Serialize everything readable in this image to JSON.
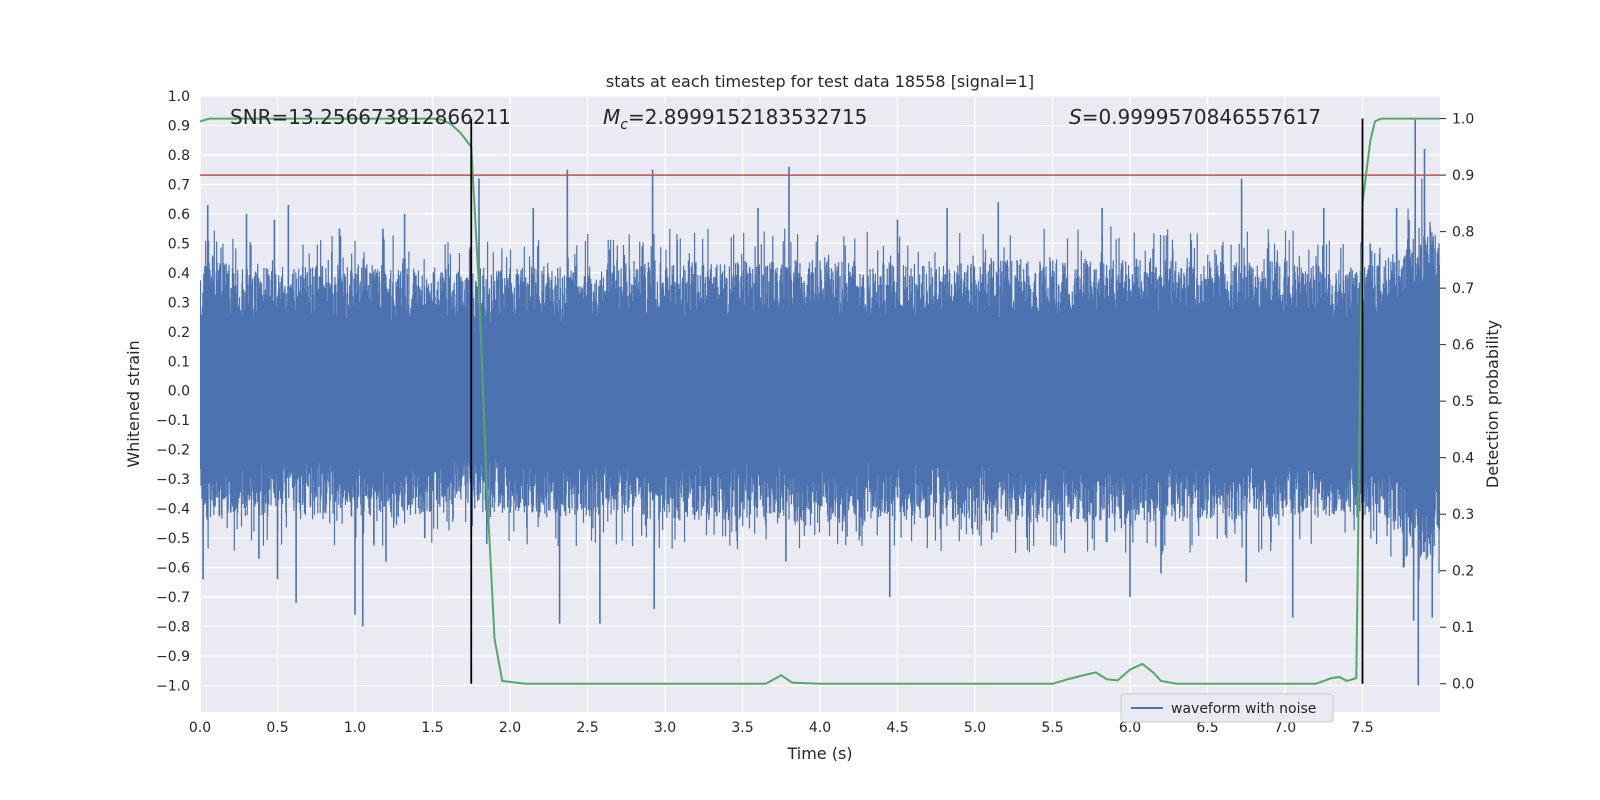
{
  "chart_data": {
    "type": "line",
    "title": "stats at each timestep for test data 18558 [signal=1]",
    "xlabel": "Time (s)",
    "ylabel": "Whitened strain",
    "y2label": "Detection probability",
    "xlim": [
      0.0,
      8.0
    ],
    "ylim": [
      -1.09,
      1.0
    ],
    "y2lim": [
      -0.05,
      1.04
    ],
    "xticks": [
      "0.0",
      "0.5",
      "1.0",
      "1.5",
      "2.0",
      "2.5",
      "3.0",
      "3.5",
      "4.0",
      "4.5",
      "5.0",
      "5.5",
      "6.0",
      "6.5",
      "7.0",
      "7.5"
    ],
    "xtick_values": [
      0.0,
      0.5,
      1.0,
      1.5,
      2.0,
      2.5,
      3.0,
      3.5,
      4.0,
      4.5,
      5.0,
      5.5,
      6.0,
      6.5,
      7.0,
      7.5
    ],
    "yticks": [
      "1.0",
      "0.9",
      "0.8",
      "0.7",
      "0.6",
      "0.5",
      "0.4",
      "0.3",
      "0.2",
      "0.1",
      "0.0",
      "−0.1",
      "−0.2",
      "−0.3",
      "−0.4",
      "−0.5",
      "−0.6",
      "−0.7",
      "−0.8",
      "−0.9",
      "−1.0"
    ],
    "ytick_values": [
      1.0,
      0.9,
      0.8,
      0.7,
      0.6,
      0.5,
      0.4,
      0.3,
      0.2,
      0.1,
      0.0,
      -0.1,
      -0.2,
      -0.3,
      -0.4,
      -0.5,
      -0.6,
      -0.7,
      -0.8,
      -0.9,
      -1.0
    ],
    "y2ticks": [
      "1.0",
      "0.9",
      "0.8",
      "0.7",
      "0.6",
      "0.5",
      "0.4",
      "0.3",
      "0.2",
      "0.1",
      "0.0"
    ],
    "y2tick_values": [
      1.0,
      0.9,
      0.8,
      0.7,
      0.6,
      0.5,
      0.4,
      0.3,
      0.2,
      0.1,
      0.0
    ],
    "grid": true,
    "legend": {
      "placement": "lower-right",
      "entries": [
        "waveform with noise"
      ]
    },
    "annotations": {
      "snr": "SNR=13.256673812866211",
      "mc_symbol": "M",
      "mc_sub": "c",
      "mc_value": "=2.8999152183532715",
      "s_symbol": "S",
      "s_value": "=0.9999570846557617"
    },
    "threshold": {
      "value": 0.9,
      "axis": "right",
      "color": "#c44e52"
    },
    "vlines": [
      1.75,
      7.5
    ],
    "series": [
      {
        "name": "waveform with noise",
        "axis": "left",
        "color": "#4c72b0",
        "envelope": {
          "x": [
            0.0,
            0.5,
            1.0,
            1.5,
            1.75,
            2.0,
            2.5,
            3.0,
            3.5,
            4.0,
            4.5,
            5.0,
            5.5,
            6.0,
            6.5,
            7.0,
            7.5,
            7.8,
            7.9,
            8.0
          ],
          "typical": [
            0.45,
            0.42,
            0.43,
            0.42,
            0.4,
            0.42,
            0.43,
            0.44,
            0.44,
            0.45,
            0.43,
            0.44,
            0.45,
            0.45,
            0.44,
            0.44,
            0.42,
            0.5,
            0.6,
            0.55
          ]
        },
        "spikes": [
          {
            "x": 0.05,
            "y": 0.63
          },
          {
            "x": 0.02,
            "y": -0.64
          },
          {
            "x": 0.3,
            "y": 0.6
          },
          {
            "x": 0.38,
            "y": -0.57
          },
          {
            "x": 0.48,
            "y": 0.58
          },
          {
            "x": 0.5,
            "y": -0.64
          },
          {
            "x": 0.57,
            "y": 0.63
          },
          {
            "x": 0.62,
            "y": -0.72
          },
          {
            "x": 0.9,
            "y": 0.55
          },
          {
            "x": 1.0,
            "y": -0.76
          },
          {
            "x": 1.05,
            "y": -0.8
          },
          {
            "x": 1.18,
            "y": 0.55
          },
          {
            "x": 1.2,
            "y": -0.58
          },
          {
            "x": 1.32,
            "y": 0.6
          },
          {
            "x": 1.45,
            "y": -0.5
          },
          {
            "x": 1.8,
            "y": 0.72
          },
          {
            "x": 1.85,
            "y": -0.52
          },
          {
            "x": 2.15,
            "y": 0.62
          },
          {
            "x": 2.32,
            "y": -0.79
          },
          {
            "x": 2.37,
            "y": 0.75
          },
          {
            "x": 2.58,
            "y": -0.79
          },
          {
            "x": 2.93,
            "y": -0.74
          },
          {
            "x": 2.92,
            "y": 0.75
          },
          {
            "x": 3.6,
            "y": 0.62
          },
          {
            "x": 3.8,
            "y": 0.76
          },
          {
            "x": 3.78,
            "y": -0.58
          },
          {
            "x": 4.45,
            "y": -0.7
          },
          {
            "x": 4.82,
            "y": 0.62
          },
          {
            "x": 4.5,
            "y": 0.58
          },
          {
            "x": 5.15,
            "y": 0.64
          },
          {
            "x": 5.82,
            "y": 0.62
          },
          {
            "x": 6.0,
            "y": -0.7
          },
          {
            "x": 6.2,
            "y": -0.62
          },
          {
            "x": 6.72,
            "y": 0.72
          },
          {
            "x": 6.75,
            "y": -0.65
          },
          {
            "x": 7.05,
            "y": -0.77
          },
          {
            "x": 7.25,
            "y": 0.62
          },
          {
            "x": 7.55,
            "y": 0.5
          },
          {
            "x": 7.72,
            "y": 0.62
          },
          {
            "x": 7.8,
            "y": 0.58
          },
          {
            "x": 7.84,
            "y": 0.92
          },
          {
            "x": 7.86,
            "y": -1.0
          },
          {
            "x": 7.83,
            "y": -0.78
          },
          {
            "x": 7.9,
            "y": 0.82
          },
          {
            "x": 7.95,
            "y": -0.77
          }
        ]
      },
      {
        "name": "",
        "axis": "right",
        "color": "#55a868",
        "x": [
          0.0,
          0.06,
          0.2,
          0.5,
          1.0,
          1.4,
          1.5,
          1.56,
          1.62,
          1.68,
          1.75,
          1.8,
          1.85,
          1.9,
          1.95,
          2.1,
          2.5,
          3.0,
          3.5,
          3.65,
          3.75,
          3.82,
          4.0,
          4.5,
          5.0,
          5.3,
          5.5,
          5.6,
          5.7,
          5.78,
          5.85,
          5.92,
          6.0,
          6.08,
          6.15,
          6.2,
          6.3,
          6.5,
          6.7,
          7.0,
          7.2,
          7.3,
          7.35,
          7.4,
          7.46,
          7.5,
          7.55,
          7.58,
          7.62,
          7.7,
          8.0
        ],
        "values": [
          0.995,
          1.0,
          1.0,
          1.0,
          1.0,
          1.0,
          1.0,
          0.998,
          0.99,
          0.975,
          0.95,
          0.7,
          0.35,
          0.08,
          0.005,
          0.0,
          0.0,
          0.0,
          0.0,
          0.0,
          0.015,
          0.002,
          0.0,
          0.0,
          0.0,
          0.0,
          0.0,
          0.008,
          0.015,
          0.02,
          0.008,
          0.006,
          0.025,
          0.035,
          0.02,
          0.005,
          0.0,
          0.0,
          0.0,
          0.0,
          0.0,
          0.01,
          0.012,
          0.005,
          0.01,
          0.85,
          0.96,
          0.995,
          1.0,
          1.0,
          1.0
        ]
      }
    ]
  }
}
